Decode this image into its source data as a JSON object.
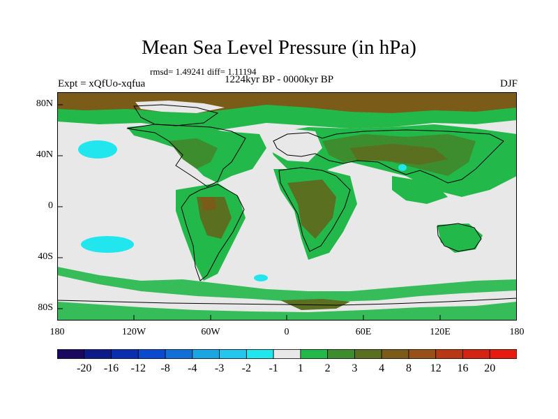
{
  "title": "Mean Sea Level Pressure (in hPa)",
  "stats": "rmsd= 1.49241 diff= 1.11194",
  "experiment": "Expt = xQfUo-xqfua",
  "period": "1224kyr BP - 0000kyr BP",
  "season": "DJF",
  "axes": {
    "lat_labels": [
      "80N",
      "40N",
      "0",
      "40S",
      "80S"
    ],
    "lon_labels": [
      "180",
      "120W",
      "60W",
      "0",
      "60E",
      "120E",
      "180"
    ]
  },
  "colorbar": {
    "labels": [
      "-20",
      "-16",
      "-12",
      "-8",
      "-4",
      "-3",
      "-2",
      "-1",
      "1",
      "2",
      "3",
      "4",
      "8",
      "12",
      "16",
      "20"
    ],
    "colors": [
      "#1a0860",
      "#0c1a8a",
      "#0a2eb0",
      "#0a4ad0",
      "#1070d8",
      "#1aa6e2",
      "#22c6ee",
      "#22e6ee",
      "#e8e8e8",
      "#22b84a",
      "#3d8c2e",
      "#5a7020",
      "#7a5c18",
      "#985018",
      "#b83814",
      "#d42414",
      "#e81a10"
    ]
  },
  "field_colors": {
    "ocean_neutral": "#e8e8e8",
    "pos_2": "#22b84a",
    "pos_3": "#3d8c2e",
    "pos_4": "#5a7020",
    "pos_8": "#7a5c18",
    "neg_2": "#22e6ee",
    "coast": "#000000"
  }
}
